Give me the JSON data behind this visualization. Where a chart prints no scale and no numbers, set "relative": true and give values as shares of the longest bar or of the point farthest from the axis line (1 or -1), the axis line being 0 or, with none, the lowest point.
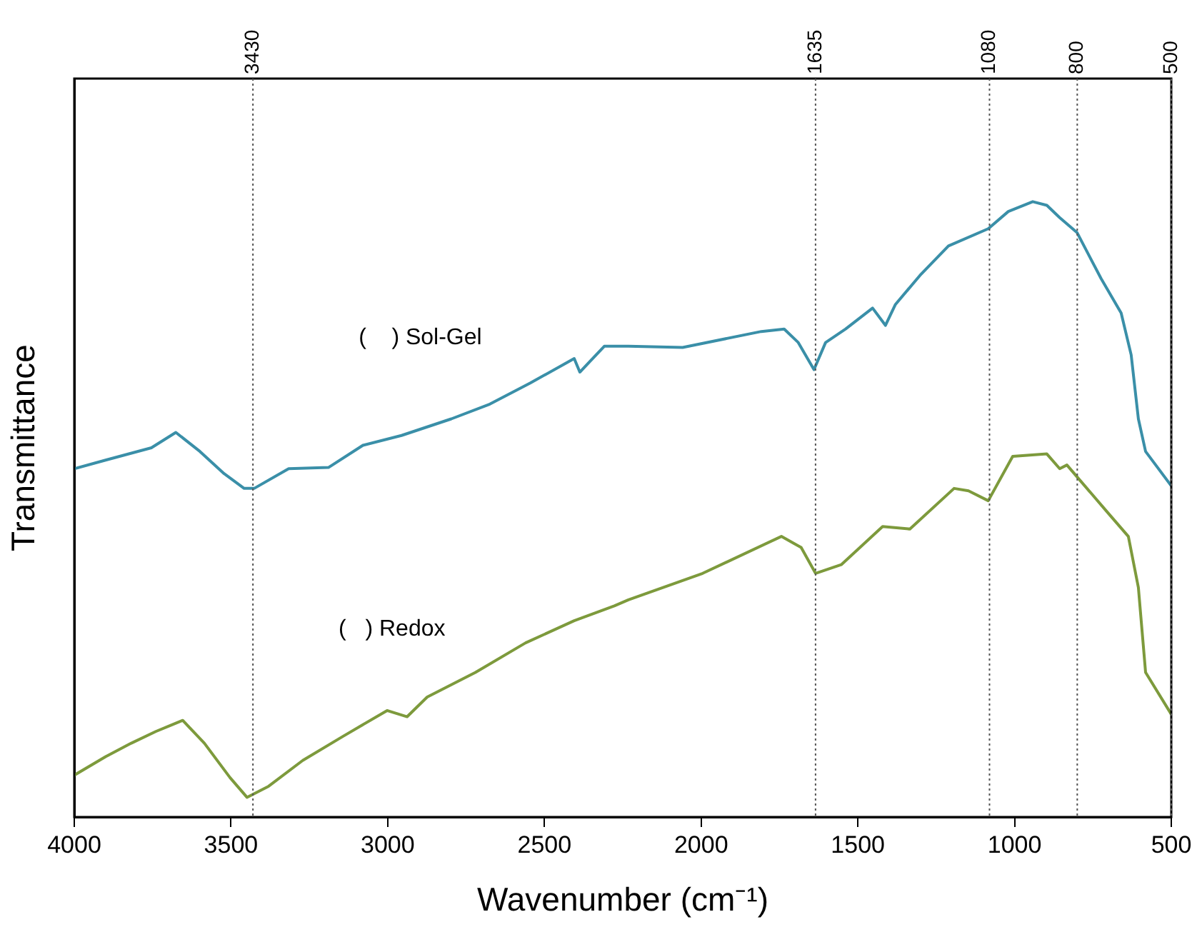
{
  "chart_data": {
    "type": "line",
    "relative": true,
    "xlabel": "Wavenumber (cm⁻¹)",
    "ylabel": "Transmittance",
    "xlim": [
      4000,
      500
    ],
    "xticks": [
      4000,
      3500,
      3000,
      2500,
      2000,
      1500,
      1000,
      500
    ],
    "grid": false,
    "legend": false,
    "marker": "none",
    "line_style": "solid",
    "series": [
      {
        "name": "(    ) Sol-Gel",
        "color": "#3a8fa8",
        "x": [
          4000,
          3900,
          3754,
          3676,
          3599,
          3522,
          3458,
          3426,
          3316,
          3189,
          3079,
          2956,
          2797,
          2674,
          2546,
          2405,
          2387,
          2309,
          2232,
          2059,
          1808,
          1735,
          1690,
          1640,
          1603,
          1539,
          1453,
          1412,
          1380,
          1302,
          1211,
          1084,
          1020,
          942,
          897,
          856,
          801,
          724,
          660,
          628,
          605,
          582,
          500
        ],
        "values": [
          0.566,
          0.58,
          0.6,
          0.625,
          0.594,
          0.558,
          0.534,
          0.534,
          0.566,
          0.568,
          0.604,
          0.62,
          0.647,
          0.671,
          0.705,
          0.745,
          0.723,
          0.765,
          0.765,
          0.763,
          0.789,
          0.793,
          0.771,
          0.727,
          0.771,
          0.793,
          0.827,
          0.799,
          0.833,
          0.88,
          0.928,
          0.956,
          0.984,
          1,
          0.994,
          0.974,
          0.95,
          0.875,
          0.819,
          0.751,
          0.647,
          0.594,
          0.538
        ]
      },
      {
        "name": "(   ) Redox",
        "color": "#7d9a3c",
        "x": [
          4000,
          3900,
          3818,
          3740,
          3654,
          3585,
          3503,
          3449,
          3380,
          3271,
          3143,
          3002,
          2938,
          2874,
          2720,
          2560,
          2405,
          2277,
          2232,
          1995,
          1744,
          1681,
          1635,
          1553,
          1421,
          1334,
          1193,
          1147,
          1084,
          1006,
          897,
          856,
          833,
          705,
          637,
          605,
          582,
          500
        ],
        "values": [
          0.068,
          0.098,
          0.12,
          0.139,
          0.157,
          0.12,
          0.064,
          0.032,
          0.05,
          0.092,
          0.131,
          0.173,
          0.163,
          0.195,
          0.235,
          0.283,
          0.319,
          0.343,
          0.353,
          0.396,
          0.456,
          0.438,
          0.396,
          0.41,
          0.472,
          0.468,
          0.534,
          0.53,
          0.514,
          0.586,
          0.59,
          0.566,
          0.572,
          0.496,
          0.456,
          0.373,
          0.235,
          0.167
        ]
      }
    ],
    "ref_lines": [
      {
        "axis": "x",
        "value": 3430,
        "label": "3430",
        "line_style": "dotted"
      },
      {
        "axis": "x",
        "value": 1635,
        "label": "1635",
        "line_style": "dotted"
      },
      {
        "axis": "x",
        "value": 1080,
        "label": "1080",
        "line_style": "dotted"
      },
      {
        "axis": "x",
        "value": 800,
        "label": "800",
        "line_style": "dotted"
      },
      {
        "axis": "x",
        "value": 500,
        "label": "500",
        "line_style": "dotted"
      }
    ]
  }
}
